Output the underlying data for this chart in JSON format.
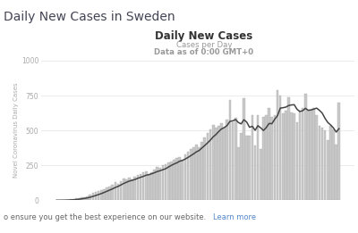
{
  "page_title": "Daily New Cases in Sweden",
  "chart_title": "Daily New Cases",
  "subtitle1": "Cases per Day",
  "subtitle2": "Data as of 0:00 GMT+0",
  "ylabel": "Novel Coronavirus Daily Cases",
  "ylim": [
    0,
    1000
  ],
  "yticks": [
    0,
    250,
    500,
    750,
    1000
  ],
  "footer_text": "o ensure you get the best experience on our website. ",
  "footer_link": "Learn more",
  "bar_color": "#c8c8c8",
  "bar_edge_color": "#b0b0b0",
  "line_color": "#444444",
  "bg_color": "#ffffff",
  "footer_bg": "#eeeeee",
  "page_title_color": "#444455",
  "chart_title_color": "#333333",
  "subtitle_color": "#999999",
  "ylabel_color": "#aaaaaa",
  "ytick_color": "#aaaaaa",
  "grid_color": "#e8e8e8",
  "daily_values": [
    1,
    1,
    2,
    3,
    5,
    8,
    10,
    14,
    18,
    20,
    25,
    30,
    40,
    52,
    60,
    65,
    70,
    80,
    90,
    100,
    112,
    130,
    120,
    140,
    155,
    150,
    160,
    150,
    170,
    180,
    190,
    200,
    210,
    185,
    200,
    220,
    240,
    230,
    250,
    260,
    270,
    280,
    290,
    300,
    310,
    290,
    330,
    350,
    370,
    380,
    400,
    380,
    420,
    450,
    480,
    510,
    540,
    520,
    530,
    550,
    520,
    580,
    720,
    560,
    590,
    380,
    480,
    730,
    460,
    460,
    610,
    390,
    610,
    370,
    600,
    610,
    660,
    600,
    610,
    790,
    750,
    620,
    640,
    740,
    630,
    620,
    560,
    640,
    660,
    760,
    640,
    650,
    660,
    610,
    530,
    520,
    500,
    430,
    530,
    510,
    400,
    700
  ]
}
